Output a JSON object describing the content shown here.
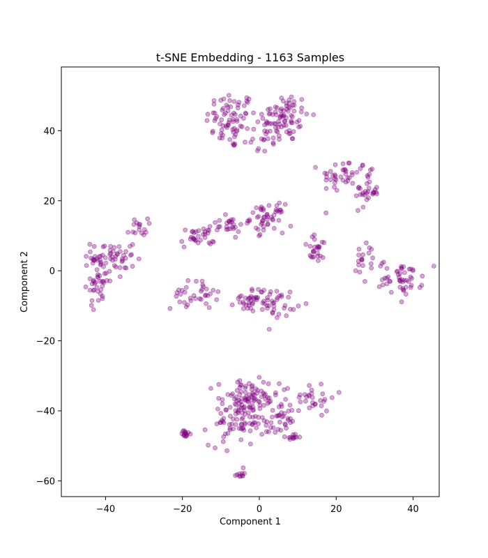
{
  "chart_data": {
    "type": "scatter",
    "title": "t-SNE Embedding - 1163 Samples",
    "xlabel": "Component 1",
    "ylabel": "Component 2",
    "xlim": [
      -51.5,
      46.8
    ],
    "ylim": [
      -64.5,
      58.2
    ],
    "xticks": [
      -40,
      -20,
      0,
      20,
      40
    ],
    "yticks": [
      -60,
      -40,
      -20,
      0,
      20,
      40
    ],
    "grid": false,
    "legend": false,
    "marker_color": "#800080",
    "marker_alpha": 0.35,
    "n_samples": 1163,
    "clusters": [
      {
        "cx": -7.5,
        "cy": 43,
        "sx": 3.2,
        "sy": 4.2,
        "n": 70
      },
      {
        "cx": 6,
        "cy": 44,
        "sx": 3.5,
        "sy": 3.6,
        "n": 80
      },
      {
        "cx": 1,
        "cy": 38,
        "sx": 3,
        "sy": 2.8,
        "n": 20
      },
      {
        "cx": 22,
        "cy": 27,
        "sx": 3,
        "sy": 2.5,
        "n": 40
      },
      {
        "cx": 28,
        "cy": 23,
        "sx": 1.5,
        "sy": 2.5,
        "n": 30
      },
      {
        "cx": -38,
        "cy": 4,
        "sx": 2.8,
        "sy": 3,
        "n": 55
      },
      {
        "cx": -42,
        "cy": -3,
        "sx": 1.5,
        "sy": 3.5,
        "n": 40
      },
      {
        "cx": -31,
        "cy": 12.5,
        "sx": 1,
        "sy": 1.2,
        "n": 15
      },
      {
        "cx": -16,
        "cy": 9.5,
        "sx": 2.2,
        "sy": 1.5,
        "n": 30
      },
      {
        "cx": -8.5,
        "cy": 13,
        "sx": 2.5,
        "sy": 1.2,
        "n": 25
      },
      {
        "cx": 2,
        "cy": 15,
        "sx": 2.2,
        "sy": 2,
        "n": 50
      },
      {
        "cx": 15,
        "cy": 6,
        "sx": 1.8,
        "sy": 2,
        "n": 25
      },
      {
        "cx": 28,
        "cy": 2,
        "sx": 2,
        "sy": 3,
        "n": 20
      },
      {
        "cx": 37,
        "cy": -2,
        "sx": 2.8,
        "sy": 2.5,
        "n": 50
      },
      {
        "cx": -17,
        "cy": -7,
        "sx": 3,
        "sy": 2,
        "n": 35
      },
      {
        "cx": -2,
        "cy": -8,
        "sx": 2.2,
        "sy": 1.8,
        "n": 30
      },
      {
        "cx": 4,
        "cy": -9,
        "sx": 2.8,
        "sy": 2,
        "n": 40
      },
      {
        "cx": -3,
        "cy": -37,
        "sx": 4,
        "sy": 3,
        "n": 90
      },
      {
        "cx": -6,
        "cy": -44,
        "sx": 3.5,
        "sy": 3,
        "n": 60
      },
      {
        "cx": 5,
        "cy": -42,
        "sx": 3,
        "sy": 3,
        "n": 40
      },
      {
        "cx": 13,
        "cy": -36,
        "sx": 3.5,
        "sy": 2,
        "n": 30
      },
      {
        "cx": -19,
        "cy": -46.5,
        "sx": 0.6,
        "sy": 0.8,
        "n": 15
      },
      {
        "cx": -5,
        "cy": -58,
        "sx": 0.5,
        "sy": 0.5,
        "n": 10
      },
      {
        "cx": 9,
        "cy": -47.5,
        "sx": 0.8,
        "sy": 0.6,
        "n": 10
      }
    ]
  }
}
